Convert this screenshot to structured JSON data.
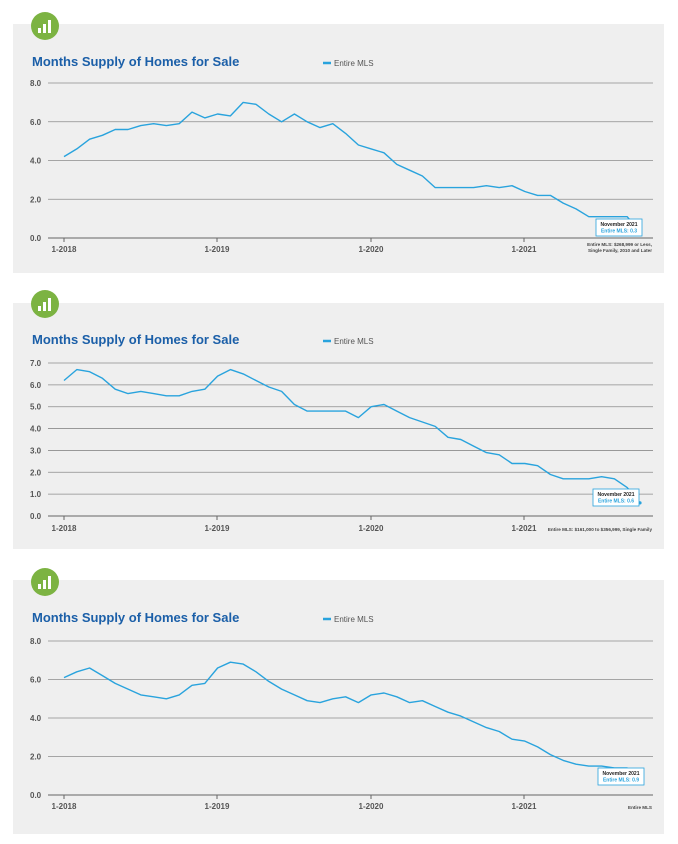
{
  "colors": {
    "line": "#29a3dd",
    "title": "#1b5fa8",
    "badge": "#7cb342",
    "panel": "#efefef",
    "grid": "#8c8c8c"
  },
  "icons": {
    "badge": "bar-chart-icon"
  },
  "chart_data": [
    {
      "type": "line",
      "title": "Months Supply of Homes for Sale",
      "legend": "Entire MLS",
      "legend_position": "top",
      "ylim": [
        0,
        8
      ],
      "yticks": [
        "0.0",
        "2.0",
        "4.0",
        "6.0",
        "8.0"
      ],
      "xticks": [
        "1-2018",
        "1-2019",
        "1-2020",
        "1-2021"
      ],
      "grid": true,
      "callout": {
        "line1": "November 2021",
        "line2": "Entire MLS: 0.3"
      },
      "notes": [
        "Entire MLS: $268,999 or Less,",
        "Single Family, 2010 and Later"
      ],
      "series": [
        {
          "name": "Entire MLS",
          "values": [
            4.2,
            4.6,
            5.1,
            5.3,
            5.6,
            5.6,
            5.8,
            5.9,
            5.8,
            5.9,
            6.5,
            6.2,
            6.4,
            6.3,
            7.0,
            6.9,
            6.4,
            6.0,
            6.4,
            6.0,
            5.7,
            5.9,
            5.4,
            4.8,
            4.6,
            4.4,
            3.8,
            3.5,
            3.2,
            2.6,
            2.6,
            2.6,
            2.6,
            2.7,
            2.6,
            2.7,
            2.4,
            2.2,
            2.2,
            1.8,
            1.5,
            1.1,
            1.1,
            1.1,
            1.1,
            0.3
          ]
        }
      ]
    },
    {
      "type": "line",
      "title": "Months Supply of Homes for Sale",
      "legend": "Entire MLS",
      "legend_position": "top",
      "ylim": [
        0,
        7
      ],
      "yticks": [
        "0.0",
        "1.0",
        "2.0",
        "3.0",
        "4.0",
        "5.0",
        "6.0",
        "7.0"
      ],
      "xticks": [
        "1-2018",
        "1-2019",
        "1-2020",
        "1-2021"
      ],
      "grid": true,
      "callout": {
        "line1": "November 2021",
        "line2": "Entire MLS: 0.6"
      },
      "notes": [
        "Entire MLS: $161,000 to $356,999, Single Family"
      ],
      "series": [
        {
          "name": "Entire MLS",
          "values": [
            6.2,
            6.7,
            6.6,
            6.3,
            5.8,
            5.6,
            5.7,
            5.6,
            5.5,
            5.5,
            5.7,
            5.8,
            6.4,
            6.7,
            6.5,
            6.2,
            5.9,
            5.7,
            5.1,
            4.8,
            4.8,
            4.8,
            4.8,
            4.5,
            5.0,
            5.1,
            4.8,
            4.5,
            4.3,
            4.1,
            3.6,
            3.5,
            3.2,
            2.9,
            2.8,
            2.4,
            2.4,
            2.3,
            1.9,
            1.7,
            1.7,
            1.7,
            1.8,
            1.7,
            1.3,
            0.6
          ]
        }
      ]
    },
    {
      "type": "line",
      "title": "Months Supply of Homes for Sale",
      "legend": "Entire MLS",
      "legend_position": "top",
      "ylim": [
        0,
        8
      ],
      "yticks": [
        "0.0",
        "2.0",
        "4.0",
        "6.0",
        "8.0"
      ],
      "xticks": [
        "1-2018",
        "1-2019",
        "1-2020",
        "1-2021"
      ],
      "grid": true,
      "callout": {
        "line1": "November 2021",
        "line2": "Entire MLS: 0.9"
      },
      "notes": [
        "Entire MLS"
      ],
      "series": [
        {
          "name": "Entire MLS",
          "values": [
            6.1,
            6.4,
            6.6,
            6.2,
            5.8,
            5.5,
            5.2,
            5.1,
            5.0,
            5.2,
            5.7,
            5.8,
            6.6,
            6.9,
            6.8,
            6.4,
            5.9,
            5.5,
            5.2,
            4.9,
            4.8,
            5.0,
            5.1,
            4.8,
            5.2,
            5.3,
            5.1,
            4.8,
            4.9,
            4.6,
            4.3,
            4.1,
            3.8,
            3.5,
            3.3,
            2.9,
            2.8,
            2.5,
            2.1,
            1.8,
            1.6,
            1.5,
            1.5,
            1.4,
            1.4,
            0.9
          ]
        }
      ]
    }
  ]
}
